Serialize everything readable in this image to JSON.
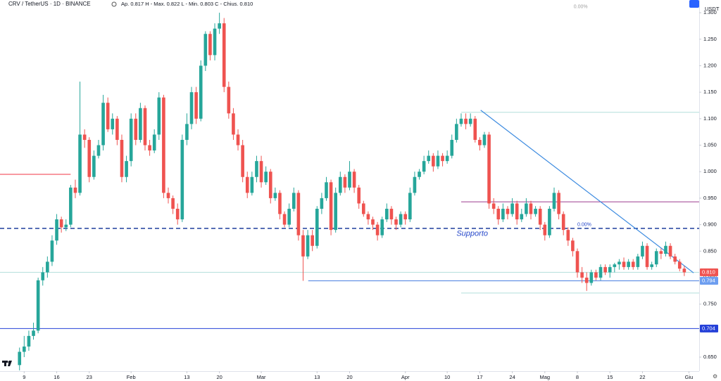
{
  "chart_data": {
    "type": "candlestick",
    "header": {
      "symbol": "CRV / TetherUS · 1D · BINANCE",
      "ohlc": "Ap. 0.817  H - Max. 0.822  L - Min. 0.803  C - Chius. 0.810",
      "currency": "USDT"
    },
    "open": [
      0.635,
      0.66,
      0.67,
      0.69,
      0.7,
      0.795,
      0.81,
      0.83,
      0.87,
      0.91,
      0.895,
      0.9,
      0.97,
      0.96,
      1.07,
      1.06,
      0.99,
      1.03,
      1.05,
      1.13,
      1.08,
      1.1,
      1.06,
      0.99,
      1.02,
      1.1,
      1.06,
      1.12,
      1.05,
      1.04,
      1.07,
      1.14,
      0.96,
      0.95,
      0.93,
      0.91,
      1.06,
      1.09,
      1.15,
      1.1,
      1.2,
      1.26,
      1.22,
      1.27,
      1.28,
      1.16,
      1.11,
      1.07,
      1.05,
      0.99,
      0.96,
      0.99,
      1.02,
      0.98,
      1.0,
      0.95,
      0.96,
      0.92,
      0.9,
      0.93,
      0.96,
      0.88,
      0.84,
      0.88,
      0.86,
      0.93,
      0.95,
      0.98,
      0.89,
      0.96,
      0.99,
      0.97,
      1.0,
      0.97,
      0.94,
      0.92,
      0.91,
      0.9,
      0.88,
      0.91,
      0.93,
      0.91,
      0.9,
      0.92,
      0.91,
      0.96,
      0.99,
      1.0,
      1.02,
      1.03,
      1.01,
      1.03,
      1.02,
      1.03,
      1.06,
      1.09,
      1.1,
      1.09,
      1.1,
      1.06,
      1.05,
      1.07,
      0.94,
      0.93,
      0.91,
      0.93,
      0.92,
      0.94,
      0.91,
      0.92,
      0.94,
      0.92,
      0.93,
      0.9,
      0.88,
      0.93,
      0.96,
      0.92,
      0.89,
      0.87,
      0.85,
      0.81,
      0.8,
      0.79,
      0.81,
      0.8,
      0.82,
      0.81,
      0.82,
      0.825,
      0.83,
      0.82,
      0.83,
      0.82,
      0.84,
      0.86,
      0.82,
      0.825,
      0.85,
      0.845,
      0.86,
      0.84,
      0.83,
      0.817
    ],
    "high": [
      0.668,
      0.69,
      0.7,
      0.715,
      0.8,
      0.82,
      0.84,
      0.88,
      0.92,
      0.915,
      0.91,
      0.975,
      0.985,
      1.17,
      1.08,
      1.065,
      1.04,
      1.06,
      1.145,
      1.14,
      1.11,
      1.105,
      1.07,
      1.03,
      1.11,
      1.11,
      1.13,
      1.125,
      1.06,
      1.08,
      1.15,
      1.145,
      0.97,
      0.955,
      0.94,
      1.07,
      1.11,
      1.16,
      1.16,
      1.21,
      1.265,
      1.265,
      1.28,
      1.3,
      1.29,
      1.17,
      1.12,
      1.08,
      1.06,
      1.0,
      1.0,
      1.03,
      1.03,
      1.01,
      1.005,
      0.97,
      0.965,
      0.925,
      0.94,
      0.97,
      0.965,
      0.89,
      0.89,
      0.89,
      0.935,
      0.96,
      0.99,
      0.985,
      0.97,
      1.0,
      0.995,
      1.02,
      1.005,
      0.975,
      0.945,
      0.925,
      0.915,
      0.905,
      0.915,
      0.94,
      0.935,
      0.915,
      0.925,
      0.925,
      0.97,
      1.0,
      1.005,
      1.03,
      1.04,
      1.035,
      1.04,
      1.035,
      1.04,
      1.07,
      1.1,
      1.11,
      1.11,
      1.11,
      1.105,
      1.065,
      1.075,
      1.075,
      0.95,
      0.935,
      0.94,
      0.935,
      0.95,
      0.945,
      0.93,
      0.95,
      0.945,
      0.935,
      0.935,
      0.905,
      0.935,
      0.97,
      0.965,
      0.925,
      0.895,
      0.875,
      0.855,
      0.82,
      0.81,
      0.815,
      0.815,
      0.825,
      0.825,
      0.825,
      0.828,
      0.835,
      0.838,
      0.835,
      0.835,
      0.845,
      0.868,
      0.865,
      0.83,
      0.855,
      0.855,
      0.868,
      0.865,
      0.845,
      0.835,
      0.822
    ],
    "low": [
      0.625,
      0.65,
      0.662,
      0.683,
      0.695,
      0.785,
      0.8,
      0.822,
      0.862,
      0.885,
      0.888,
      0.895,
      0.95,
      0.955,
      1.045,
      0.98,
      0.985,
      1.025,
      1.04,
      1.075,
      1.07,
      1.05,
      0.98,
      0.98,
      1.01,
      1.05,
      1.055,
      1.04,
      1.03,
      1.035,
      1.06,
      0.95,
      0.94,
      0.92,
      0.9,
      0.905,
      1.05,
      1.08,
      1.09,
      1.095,
      1.19,
      1.21,
      1.21,
      1.26,
      1.15,
      1.1,
      1.06,
      1.04,
      0.98,
      0.95,
      0.955,
      0.98,
      0.97,
      0.975,
      0.94,
      0.945,
      0.91,
      0.895,
      0.895,
      0.925,
      0.87,
      0.794,
      0.835,
      0.85,
      0.855,
      0.92,
      0.945,
      0.88,
      0.885,
      0.955,
      0.96,
      0.965,
      0.96,
      0.93,
      0.915,
      0.9,
      0.89,
      0.87,
      0.875,
      0.905,
      0.9,
      0.89,
      0.895,
      0.9,
      0.905,
      0.955,
      0.985,
      0.995,
      1.015,
      1.0,
      1.005,
      1.01,
      1.015,
      1.025,
      1.055,
      1.085,
      1.08,
      1.085,
      1.055,
      1.04,
      1.045,
      0.93,
      0.92,
      0.9,
      0.905,
      0.91,
      0.915,
      0.9,
      0.905,
      0.915,
      0.91,
      0.915,
      0.89,
      0.87,
      0.875,
      0.925,
      0.91,
      0.88,
      0.86,
      0.84,
      0.8,
      0.79,
      0.775,
      0.785,
      0.795,
      0.795,
      0.805,
      0.8,
      0.81,
      0.815,
      0.815,
      0.815,
      0.815,
      0.815,
      0.835,
      0.815,
      0.815,
      0.82,
      0.835,
      0.84,
      0.835,
      0.825,
      0.812,
      0.803
    ],
    "close": [
      0.66,
      0.67,
      0.69,
      0.7,
      0.795,
      0.81,
      0.83,
      0.87,
      0.91,
      0.895,
      0.9,
      0.97,
      0.96,
      1.07,
      1.06,
      0.99,
      1.03,
      1.05,
      1.13,
      1.08,
      1.1,
      1.06,
      0.99,
      1.02,
      1.1,
      1.06,
      1.12,
      1.05,
      1.04,
      1.07,
      1.14,
      0.96,
      0.95,
      0.93,
      0.91,
      1.06,
      1.09,
      1.15,
      1.1,
      1.2,
      1.26,
      1.22,
      1.27,
      1.28,
      1.16,
      1.11,
      1.07,
      1.05,
      0.99,
      0.96,
      0.99,
      1.02,
      0.98,
      1.0,
      0.95,
      0.96,
      0.92,
      0.9,
      0.93,
      0.96,
      0.88,
      0.84,
      0.88,
      0.86,
      0.93,
      0.95,
      0.98,
      0.89,
      0.96,
      0.99,
      0.97,
      1.0,
      0.97,
      0.94,
      0.92,
      0.91,
      0.9,
      0.88,
      0.91,
      0.93,
      0.91,
      0.9,
      0.92,
      0.91,
      0.96,
      0.99,
      1.0,
      1.02,
      1.03,
      1.01,
      1.03,
      1.02,
      1.03,
      1.06,
      1.09,
      1.1,
      1.09,
      1.1,
      1.06,
      1.05,
      1.07,
      0.94,
      0.93,
      0.91,
      0.93,
      0.92,
      0.94,
      0.91,
      0.92,
      0.94,
      0.92,
      0.93,
      0.9,
      0.88,
      0.93,
      0.96,
      0.92,
      0.89,
      0.87,
      0.85,
      0.81,
      0.8,
      0.79,
      0.81,
      0.8,
      0.82,
      0.81,
      0.82,
      0.825,
      0.83,
      0.82,
      0.83,
      0.82,
      0.84,
      0.86,
      0.82,
      0.825,
      0.85,
      0.845,
      0.86,
      0.84,
      0.83,
      0.817,
      0.81
    ],
    "up_color": "#26a69a",
    "down_color": "#ef5350",
    "xlim": [
      -4.2,
      146.2
    ],
    "xticks": [
      {
        "value": 1,
        "label": "9"
      },
      {
        "value": 8,
        "label": "16"
      },
      {
        "value": 15,
        "label": "23"
      },
      {
        "value": 24,
        "label": "Feb"
      },
      {
        "value": 36,
        "label": "13"
      },
      {
        "value": 43,
        "label": "20"
      },
      {
        "value": 52,
        "label": "Mar"
      },
      {
        "value": 64,
        "label": "13"
      },
      {
        "value": 71,
        "label": "20"
      },
      {
        "value": 83,
        "label": "Apr"
      },
      {
        "value": 92,
        "label": "10"
      },
      {
        "value": 99,
        "label": "17"
      },
      {
        "value": 106,
        "label": "24"
      },
      {
        "value": 113,
        "label": "Mag"
      },
      {
        "value": 120,
        "label": "8"
      },
      {
        "value": 127,
        "label": "15"
      },
      {
        "value": 134,
        "label": "22"
      },
      {
        "value": 144,
        "label": "Giu"
      }
    ],
    "ylim": [
      0.6235,
      1.324
    ],
    "yticks": [
      {
        "value": 0.65,
        "label": "0.650"
      },
      {
        "value": 0.7,
        "label": "0.700"
      },
      {
        "value": 0.75,
        "label": "0.750"
      },
      {
        "value": 0.8,
        "label": "0.800"
      },
      {
        "value": 0.85,
        "label": "0.850"
      },
      {
        "value": 0.9,
        "label": "0.900"
      },
      {
        "value": 0.95,
        "label": "0.950"
      },
      {
        "value": 1.0,
        "label": "1.000"
      },
      {
        "value": 1.05,
        "label": "1.050"
      },
      {
        "value": 1.1,
        "label": "1.100"
      },
      {
        "value": 1.15,
        "label": "1.150"
      },
      {
        "value": 1.2,
        "label": "1.200"
      },
      {
        "value": 1.25,
        "label": "1.250"
      },
      {
        "value": 1.3,
        "label": "1.300"
      }
    ],
    "hlines": [
      {
        "value": 0.995,
        "color": "#f23645",
        "from": -4.2,
        "to": 11
      },
      {
        "value": 0.893,
        "color": "#1e3f9c",
        "dashed": true
      },
      {
        "value": 0.81,
        "color": "#b2dfdb",
        "label": "0.810",
        "label_color": "#ef5350"
      },
      {
        "value": 0.794,
        "color": "#4a7fe0",
        "from": 62.1,
        "label": "0.794",
        "label_color": "#6d9ef0"
      },
      {
        "value": 0.704,
        "color": "#2440d8",
        "label": "0.704",
        "label_color": "#2440d8"
      },
      {
        "value": 0.943,
        "color": "#9c3a8f",
        "from": 95
      },
      {
        "value": 1.112,
        "color": "#b2dfdb",
        "from": 95
      },
      {
        "value": 0.771,
        "color": "#b2dfdb",
        "from": 95
      }
    ],
    "trendline": {
      "color": "#3d8be0",
      "x": [
        99.2,
        145
      ],
      "y": [
        1.116,
        0.809
      ]
    },
    "annotations": [
      {
        "text": "Supporto",
        "x": 94,
        "y": 0.883,
        "color": "#2446c9"
      },
      {
        "text": "0.00%",
        "x": 119.2,
        "y": 1.311,
        "color": "#a0a0a0"
      },
      {
        "text": "0.00%",
        "x": 120,
        "y": 0.9,
        "color": "#2446c9"
      }
    ]
  }
}
